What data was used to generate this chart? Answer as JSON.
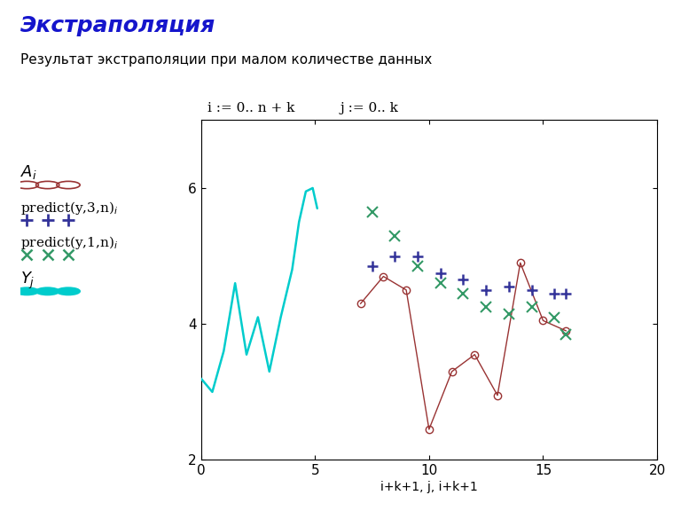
{
  "title": "Экстраполяция",
  "subtitle": "Результат экстраполяции при малом количестве данных",
  "formula1": "i := 0.. n + k",
  "formula2": "j := 0.. k",
  "xlabel": "i+k+1, j, i+k+1",
  "xlim": [
    0,
    20
  ],
  "ylim": [
    2,
    7
  ],
  "xticks": [
    0,
    5,
    10,
    15,
    20
  ],
  "yticks": [
    2,
    4,
    6
  ],
  "cyan_x": [
    0.0,
    0.5,
    1.0,
    1.5,
    2.0,
    2.5,
    3.0,
    3.5,
    4.0,
    4.3,
    4.6,
    4.9,
    5.1
  ],
  "cyan_y": [
    3.2,
    3.0,
    3.6,
    4.6,
    3.55,
    4.1,
    3.3,
    4.1,
    4.8,
    5.5,
    5.95,
    6.0,
    5.7
  ],
  "Ai_x": [
    7.0,
    8.0,
    9.0,
    10.0,
    11.0,
    12.0,
    13.0,
    14.0,
    15.0,
    16.0
  ],
  "Ai_y": [
    4.3,
    4.7,
    4.5,
    2.45,
    3.3,
    3.55,
    2.95,
    4.9,
    4.05,
    3.9
  ],
  "predict3_x": [
    7.5,
    8.5,
    9.5,
    10.5,
    11.5,
    12.5,
    13.5,
    14.5,
    15.5,
    16.0
  ],
  "predict3_y": [
    4.85,
    5.0,
    5.0,
    4.75,
    4.65,
    4.5,
    4.55,
    4.5,
    4.45,
    4.45
  ],
  "predict1_x": [
    7.5,
    8.5,
    9.5,
    10.5,
    11.5,
    12.5,
    13.5,
    14.5,
    15.5,
    16.0
  ],
  "predict1_y": [
    5.65,
    5.3,
    4.85,
    4.6,
    4.45,
    4.25,
    4.15,
    4.25,
    4.1,
    3.85
  ],
  "bg_color": "#ffffff",
  "title_color": "#1515cc",
  "line_color": "#333399",
  "cyan_color": "#00cccc",
  "Ai_color": "#993333",
  "predict3_color": "#333399",
  "predict1_color": "#339966",
  "legend_Ai_text": "$A_i$",
  "legend_p3_text": "predict(y,3,n)$_i$",
  "legend_p1_text": "predict(y,1,n)$_i$",
  "legend_Yj_text": "$Y_j$"
}
